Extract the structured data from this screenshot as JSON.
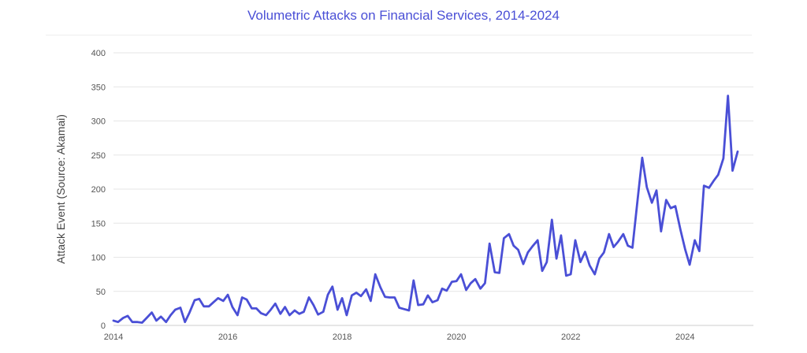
{
  "chart_data": {
    "type": "line",
    "title": "Volumetric Attacks on Financial Services, 2014-2024",
    "xlabel": "",
    "ylabel": "Attack Event (Source: Akamai)",
    "xlim": [
      2014.0,
      2024.92
    ],
    "ylim": [
      0,
      400
    ],
    "xticks": [
      2014,
      2016,
      2018,
      2020,
      2022,
      2024
    ],
    "yticks": [
      0,
      50,
      100,
      150,
      200,
      250,
      300,
      350,
      400
    ],
    "grid": "horizontal",
    "legend": "none",
    "color": "#4a4fd6",
    "x": [
      2014.0,
      2014.08,
      2014.17,
      2014.25,
      2014.33,
      2014.42,
      2014.5,
      2014.58,
      2014.67,
      2014.75,
      2014.83,
      2014.92,
      2015.0,
      2015.08,
      2015.17,
      2015.25,
      2015.33,
      2015.42,
      2015.5,
      2015.58,
      2015.67,
      2015.75,
      2015.83,
      2015.92,
      2016.0,
      2016.08,
      2016.17,
      2016.25,
      2016.33,
      2016.42,
      2016.5,
      2016.58,
      2016.67,
      2016.75,
      2016.83,
      2016.92,
      2017.0,
      2017.08,
      2017.17,
      2017.25,
      2017.33,
      2017.42,
      2017.5,
      2017.58,
      2017.67,
      2017.75,
      2017.83,
      2017.92,
      2018.0,
      2018.08,
      2018.17,
      2018.25,
      2018.33,
      2018.42,
      2018.5,
      2018.58,
      2018.67,
      2018.75,
      2018.83,
      2018.92,
      2019.0,
      2019.08,
      2019.17,
      2019.25,
      2019.33,
      2019.42,
      2019.5,
      2019.58,
      2019.67,
      2019.75,
      2019.83,
      2019.92,
      2020.0,
      2020.08,
      2020.17,
      2020.25,
      2020.33,
      2020.42,
      2020.5,
      2020.58,
      2020.67,
      2020.75,
      2020.83,
      2020.92,
      2021.0,
      2021.08,
      2021.17,
      2021.25,
      2021.33,
      2021.42,
      2021.5,
      2021.58,
      2021.67,
      2021.75,
      2021.83,
      2021.92,
      2022.0,
      2022.08,
      2022.17,
      2022.25,
      2022.33,
      2022.42,
      2022.5,
      2022.58,
      2022.67,
      2022.75,
      2022.83,
      2022.92,
      2023.0,
      2023.08,
      2023.17,
      2023.25,
      2023.33,
      2023.42,
      2023.5,
      2023.58,
      2023.67,
      2023.75,
      2023.83,
      2023.92,
      2024.0,
      2024.08,
      2024.17,
      2024.25,
      2024.33,
      2024.42,
      2024.5,
      2024.58,
      2024.67,
      2024.75,
      2024.83,
      2024.92
    ],
    "series": [
      {
        "values": [
          7,
          5,
          11,
          14,
          5,
          5,
          4,
          11,
          19,
          7,
          13,
          5,
          15,
          23,
          26,
          5,
          19,
          37,
          39,
          28,
          28,
          34,
          40,
          36,
          45,
          27,
          15,
          41,
          38,
          25,
          25,
          18,
          15,
          23,
          32,
          17,
          27,
          15,
          22,
          17,
          20,
          41,
          30,
          16,
          20,
          45,
          57,
          23,
          40,
          15,
          44,
          48,
          43,
          53,
          36,
          75,
          56,
          42,
          41,
          41,
          26,
          24,
          22,
          66,
          30,
          31,
          44,
          34,
          37,
          54,
          51,
          64,
          65,
          75,
          52,
          62,
          68,
          54,
          62,
          120,
          78,
          77,
          128,
          134,
          117,
          111,
          90,
          107,
          116,
          125,
          80,
          93,
          155,
          98,
          132,
          73,
          75,
          125,
          93,
          108,
          88,
          75,
          98,
          107,
          134,
          115,
          123,
          134,
          117,
          114,
          185,
          246,
          203,
          180,
          198,
          138,
          184,
          172,
          175,
          140,
          112,
          89,
          125,
          109,
          205,
          202,
          212,
          221,
          245,
          337,
          227,
          255
        ]
      }
    ]
  }
}
